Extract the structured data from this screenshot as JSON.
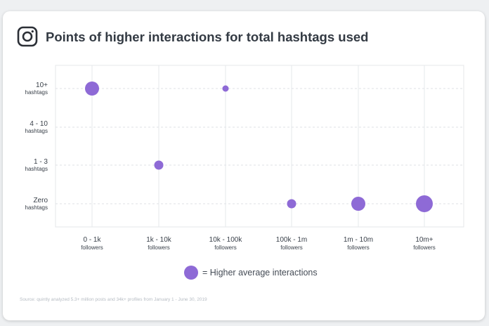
{
  "header": {
    "icon": "instagram-icon",
    "title": "Points of higher interactions for total hashtags used"
  },
  "chart_data": {
    "type": "scatter",
    "title": "Points of higher interactions for total hashtags used",
    "categories_x": [
      {
        "main": "0 - 1k",
        "sub": "followers"
      },
      {
        "main": "1k - 10k",
        "sub": "followers"
      },
      {
        "main": "10k - 100k",
        "sub": "followers"
      },
      {
        "main": "100k - 1m",
        "sub": "followers"
      },
      {
        "main": "1m - 10m",
        "sub": "followers"
      },
      {
        "main": "10m+",
        "sub": "followers"
      }
    ],
    "categories_y": [
      {
        "main": "10+",
        "sub": "hashtags"
      },
      {
        "main": "4 - 10",
        "sub": "hashtags"
      },
      {
        "main": "1 - 3",
        "sub": "hashtags"
      },
      {
        "main": "Zero",
        "sub": "hashtags"
      }
    ],
    "points": [
      {
        "x": "0 - 1k",
        "y": "10+",
        "size": 3
      },
      {
        "x": "10k - 100k",
        "y": "10+",
        "size": 1
      },
      {
        "x": "1k - 10k",
        "y": "1 - 3",
        "size": 2
      },
      {
        "x": "100k - 1m",
        "y": "Zero",
        "size": 2
      },
      {
        "x": "1m - 10m",
        "y": "Zero",
        "size": 3
      },
      {
        "x": "10m+",
        "y": "Zero",
        "size": 4
      }
    ],
    "point_color": "#8e6ad6",
    "grid": true
  },
  "legend": {
    "label": "= Higher average interactions"
  },
  "footer": {
    "source": "Source: quintly analyzed 5.3+ million posts and 34k+ profiles from January 1 - June 30, 2019"
  }
}
